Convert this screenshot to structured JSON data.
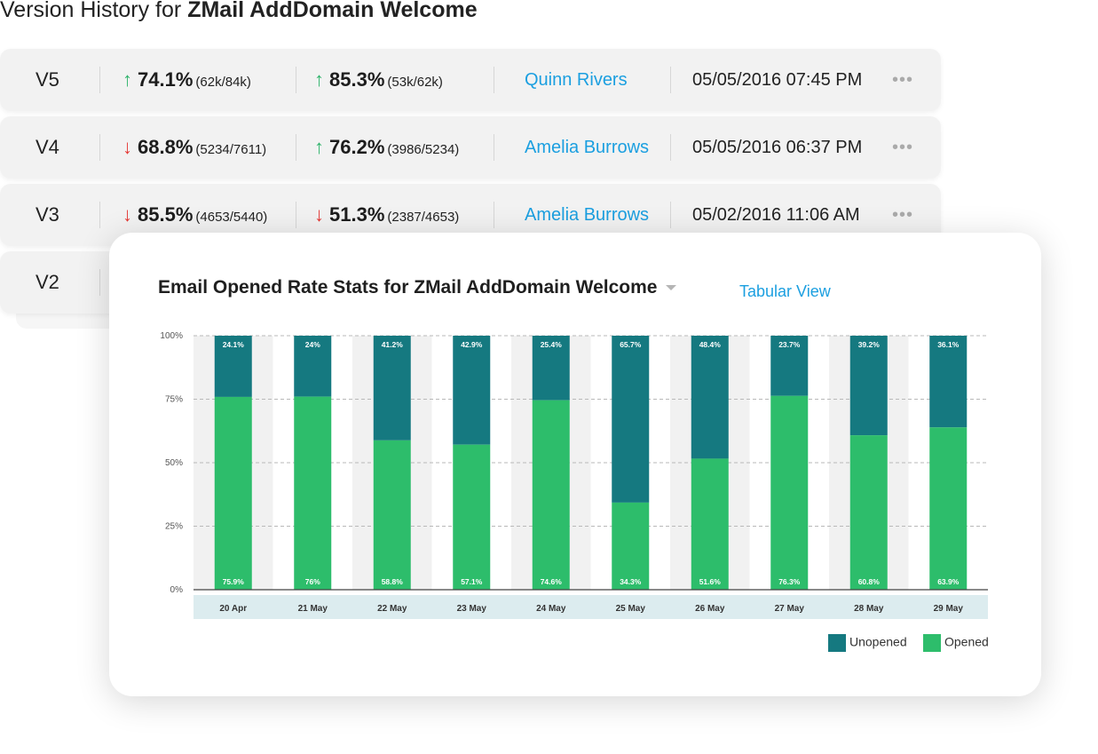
{
  "header": {
    "title_prefix": "Version History for ",
    "title_name": "ZMail AddDomain Welcome"
  },
  "versions": [
    {
      "version": "V5",
      "m1_dir": "up",
      "m1_arrow": "↑",
      "m1_pct": "74.1%",
      "m1_frac": "(62k/84k)",
      "m2_dir": "up",
      "m2_arrow": "↑",
      "m2_pct": "85.3%",
      "m2_frac": "(53k/62k)",
      "owner": "Quinn Rivers",
      "date": "05/05/2016 07:45 PM",
      "more": "•••"
    },
    {
      "version": "V4",
      "m1_dir": "down",
      "m1_arrow": "↓",
      "m1_pct": "68.8%",
      "m1_frac": "(5234/7611)",
      "m2_dir": "up",
      "m2_arrow": "↑",
      "m2_pct": "76.2%",
      "m2_frac": "(3986/5234)",
      "owner": "Amelia Burrows",
      "date": "05/05/2016 06:37 PM",
      "more": "•••"
    },
    {
      "version": "V3",
      "m1_dir": "down",
      "m1_arrow": "↓",
      "m1_pct": "85.5%",
      "m1_frac": "(4653/5440)",
      "m2_dir": "down",
      "m2_arrow": "↓",
      "m2_pct": "51.3%",
      "m2_frac": "(2387/4653)",
      "owner": "Amelia Burrows",
      "date": "05/02/2016 11:06 AM",
      "more": "•••"
    },
    {
      "version": "V2"
    }
  ],
  "card": {
    "title": "Email Opened Rate Stats for ZMail AddDomain Welcome",
    "tabular_link": "Tabular View"
  },
  "colors": {
    "opened": "#2dbd6b",
    "unopened": "#157980",
    "link": "#1b9fe0",
    "up": "#2fb36b",
    "down": "#e53935",
    "axis_band": "#dcecef"
  },
  "chart_data": {
    "type": "bar",
    "stacked": true,
    "categories": [
      "20 Apr",
      "21 May",
      "22 May",
      "23 May",
      "24 May",
      "25 May",
      "26 May",
      "27 May",
      "28 May",
      "29 May"
    ],
    "series": [
      {
        "name": "Opened",
        "values": [
          75.9,
          76,
          58.8,
          57.1,
          74.6,
          34.3,
          51.6,
          76.3,
          60.8,
          63.9
        ],
        "labels": [
          "75.9%",
          "76%",
          "58.8%",
          "57.1%",
          "74.6%",
          "34.3%",
          "51.6%",
          "76.3%",
          "60.8%",
          "63.9%"
        ]
      },
      {
        "name": "Unopened",
        "values": [
          24.1,
          24,
          41.2,
          42.9,
          25.4,
          65.7,
          48.4,
          23.7,
          39.2,
          36.1
        ],
        "labels": [
          "24.1%",
          "24%",
          "41.2%",
          "42.9%",
          "25.4%",
          "65.7%",
          "48.4%",
          "23.7%",
          "39.2%",
          "36.1%"
        ]
      }
    ],
    "yticks": [
      "0%",
      "25%",
      "50%",
      "75%",
      "100%"
    ],
    "ylim": [
      0,
      100
    ],
    "grid": true,
    "legend": "bottom-right",
    "legend_entries": [
      "Unopened",
      "Opened"
    ]
  }
}
